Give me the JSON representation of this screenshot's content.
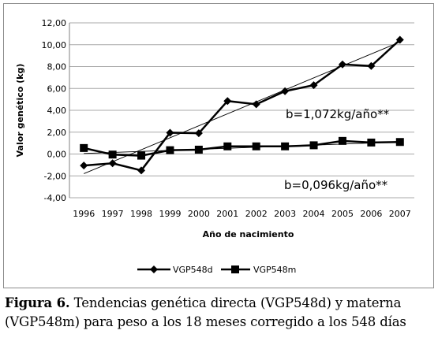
{
  "chart_data": {
    "type": "line",
    "categories": [
      "1996",
      "1997",
      "1998",
      "1999",
      "2000",
      "2001",
      "2002",
      "2003",
      "2004",
      "2005",
      "2006",
      "2007"
    ],
    "series": [
      {
        "name": "VGP548d",
        "marker": "diamond",
        "color": "#000000",
        "values": [
          -1.05,
          -0.85,
          -1.5,
          1.95,
          1.9,
          4.85,
          4.55,
          5.75,
          6.3,
          8.2,
          8.05,
          10.45
        ]
      },
      {
        "name": "VGP548m",
        "marker": "square",
        "color": "#000000",
        "values": [
          0.55,
          -0.05,
          -0.15,
          0.35,
          0.4,
          0.7,
          0.7,
          0.7,
          0.8,
          1.2,
          1.05,
          1.1
        ]
      }
    ],
    "trendlines": [
      {
        "series": "VGP548d",
        "start": -1.8,
        "end": 10.25
      },
      {
        "series": "VGP548m",
        "start": 0.05,
        "end": 1.1
      }
    ],
    "annotations": [
      "b=1,072kg/año**",
      "b=0,096kg/año**"
    ],
    "yticks": [
      "-4,00",
      "-2,00",
      "0,00",
      "2,00",
      "4,00",
      "6,00",
      "8,00",
      "10,00",
      "12,00"
    ],
    "ylim": [
      -4,
      12
    ],
    "ytick_step": 2,
    "xlabel": "Año de nacimiento",
    "ylabel": "Valor genético (kg)",
    "grid": "horizontal",
    "legend": "bottom"
  },
  "caption": {
    "label": "Figura 6.",
    "line1": " Tendencias genética directa (VGP548d) y materna",
    "line2": "(VGP548m) para peso a los 18 meses corregido a los 548 días"
  }
}
